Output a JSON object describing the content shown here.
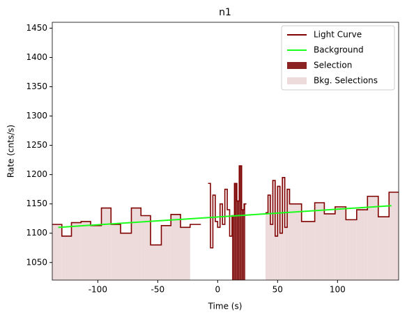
{
  "chart_data": {
    "type": "line",
    "title": "n1",
    "x_label": "Time (s)",
    "y_label": "Rate (cnts/s)",
    "xlim": [
      -138,
      151
    ],
    "ylim": [
      1020,
      1460
    ],
    "xticks": [
      -100,
      -50,
      0,
      50,
      100
    ],
    "yticks": [
      1050,
      1100,
      1150,
      1200,
      1250,
      1300,
      1350,
      1400,
      1450
    ],
    "legend": "upper right",
    "series": [
      {
        "name": "Light Curve",
        "color": "#800000",
        "step": true,
        "x": [
          -138,
          -130,
          -122,
          -114,
          -106,
          -97,
          -89,
          -81,
          -72,
          -64,
          -56,
          -47,
          -39,
          -31,
          -23,
          -14,
          -8,
          -6,
          -4,
          -2,
          0,
          2,
          4,
          6,
          8,
          10,
          12,
          14,
          16,
          18,
          20,
          22,
          24,
          40,
          42,
          44,
          46,
          48,
          50,
          52,
          54,
          56,
          58,
          60,
          70,
          81,
          89,
          98,
          107,
          116,
          125,
          134,
          143
        ],
        "values": [
          1115,
          1095,
          1118,
          1120,
          1113,
          1143,
          1115,
          1100,
          1143,
          1130,
          1080,
          1113,
          1132,
          1110,
          1115,
          null,
          1185,
          1075,
          1165,
          1120,
          1110,
          1150,
          1115,
          1175,
          1140,
          1095,
          1130,
          1185,
          1155,
          1215,
          1140,
          1150,
          null,
          1135,
          1165,
          1115,
          1190,
          1095,
          1180,
          1100,
          1195,
          1110,
          1175,
          1150,
          1120,
          1152,
          1133,
          1145,
          1123,
          1140,
          1163,
          1128,
          1170
        ]
      },
      {
        "name": "Background",
        "color": "#1aff1a",
        "x": [
          -133,
          145
        ],
        "values": [
          1110,
          1147
        ]
      }
    ],
    "regions": [
      {
        "name": "Selection",
        "color": "#8b2323",
        "spans": [
          [
            12,
            23
          ]
        ]
      },
      {
        "name": "Bkg. Selections",
        "color": "#eddada",
        "spans": [
          [
            -138,
            -23
          ],
          [
            40,
            151
          ]
        ]
      }
    ]
  }
}
